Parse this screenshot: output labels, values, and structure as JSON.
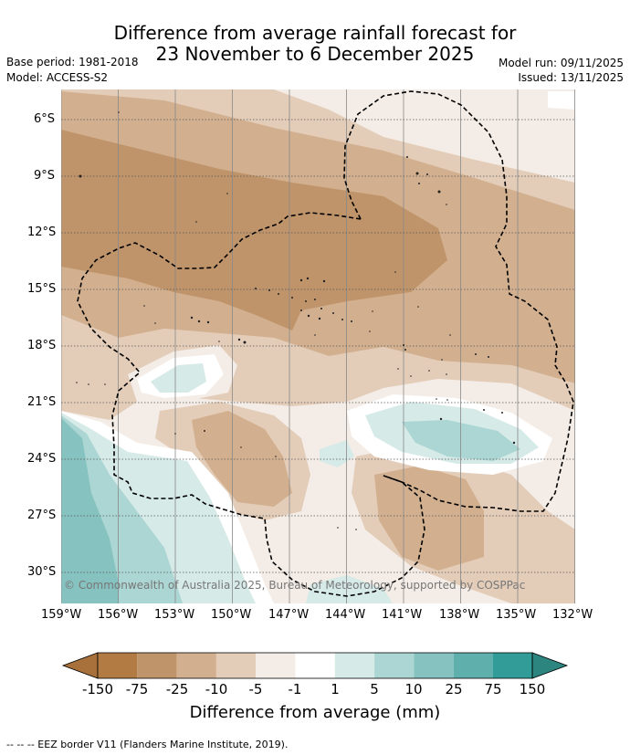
{
  "title": {
    "line1": "Difference from average rainfall forecast for",
    "line2": "23 November to 6 December 2025"
  },
  "meta": {
    "base_period": "Base period: 1981-2018",
    "model": "Model: ACCESS-S2",
    "model_run": "Model run: 09/11/2025",
    "issued": "Issued: 13/11/2025"
  },
  "map": {
    "lat_labels": [
      "6°S",
      "9°S",
      "12°S",
      "15°S",
      "18°S",
      "21°S",
      "24°S",
      "27°S",
      "30°S"
    ],
    "lon_labels": [
      "159°W",
      "156°W",
      "153°W",
      "150°W",
      "147°W",
      "144°W",
      "141°W",
      "138°W",
      "135°W",
      "132°W"
    ],
    "copyright": "© Commonwealth of Australia 2025, Bureau of Meteorology, supported by COSPPac"
  },
  "colorbar": {
    "labels": [
      "-150",
      "-75",
      "-25",
      "-10",
      "-5",
      "-1",
      "1",
      "5",
      "10",
      "25",
      "75",
      "150"
    ],
    "colors": [
      "#a8703a",
      "#b27b43",
      "#c0946a",
      "#d2b08f",
      "#e3cdb9",
      "#f4ece6",
      "#ffffff",
      "#d6eae8",
      "#acd6d3",
      "#86c2bf",
      "#5fb0ac",
      "#329d98",
      "#2d8580"
    ],
    "title": "Difference from average (mm)"
  },
  "footer": "--  --  -- EEZ border V11 (Flanders Marine Institute, 2019)."
}
